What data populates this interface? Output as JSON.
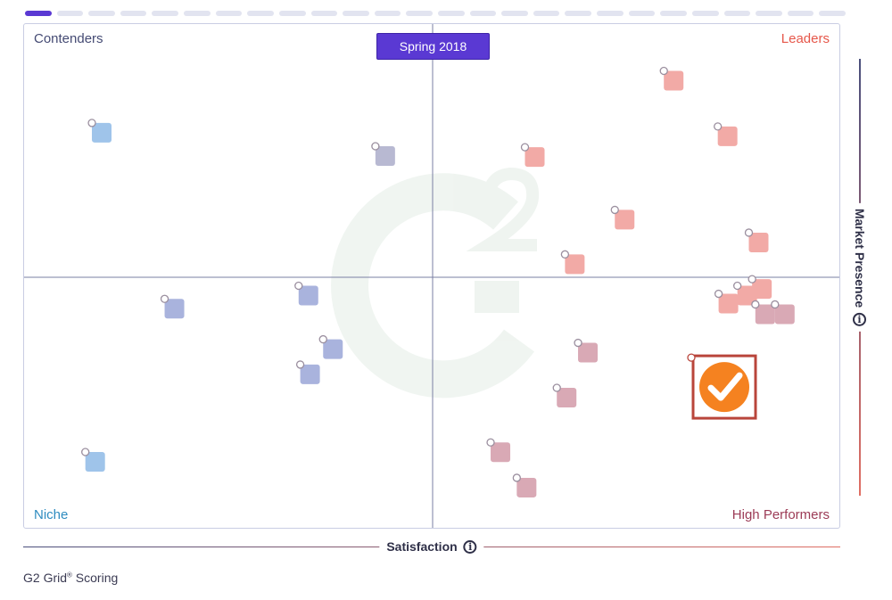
{
  "progress": {
    "total_steps": 26,
    "active_step": 1
  },
  "quadrants": {
    "top_left": "Contenders",
    "top_right": "Leaders",
    "bottom_left": "Niche",
    "bottom_right": "High Performers"
  },
  "period_label": "Spring 2018",
  "footer": {
    "text": "G2 Grid",
    "mark": "®",
    "suffix": " Scoring"
  },
  "colors": {
    "accent": "#5a39d3",
    "leaders": "#e6574a",
    "contenders": "#454b74",
    "niche": "#2f8cc0",
    "high_performers": "#9c3b56",
    "highlight_icon": "#f58220"
  },
  "icons": {
    "info": "info-icon",
    "highlight": "checkmark-icon",
    "watermark": "g2-logo"
  },
  "chart_data": {
    "type": "scatter",
    "title": "",
    "xlabel": "Satisfaction",
    "ylabel": "Market Presence",
    "xlim": [
      0,
      100
    ],
    "ylim": [
      0,
      100
    ],
    "grid": false,
    "points": [
      {
        "x": 9.5,
        "y": 78.5,
        "group": "Contenders"
      },
      {
        "x": 44.2,
        "y": 73.9,
        "group": "Contenders"
      },
      {
        "x": 62.5,
        "y": 73.7,
        "group": "Leaders"
      },
      {
        "x": 79.5,
        "y": 88.8,
        "group": "Leaders"
      },
      {
        "x": 86.1,
        "y": 77.8,
        "group": "Leaders"
      },
      {
        "x": 73.5,
        "y": 61.3,
        "group": "Leaders"
      },
      {
        "x": 89.9,
        "y": 56.8,
        "group": "Leaders"
      },
      {
        "x": 67.4,
        "y": 52.5,
        "group": "Leaders"
      },
      {
        "x": 90.3,
        "y": 47.6,
        "group": "Leaders"
      },
      {
        "x": 88.5,
        "y": 46.3,
        "group": "Leaders"
      },
      {
        "x": 86.2,
        "y": 44.7,
        "group": "Leaders"
      },
      {
        "x": 90.7,
        "y": 42.6,
        "group": "High Performers"
      },
      {
        "x": 93.1,
        "y": 42.6,
        "group": "High Performers"
      },
      {
        "x": 18.4,
        "y": 43.7,
        "group": "Niche"
      },
      {
        "x": 34.8,
        "y": 46.3,
        "group": "Niche"
      },
      {
        "x": 37.8,
        "y": 35.7,
        "group": "Niche"
      },
      {
        "x": 35.0,
        "y": 30.7,
        "group": "Niche"
      },
      {
        "x": 8.7,
        "y": 13.4,
        "group": "Niche"
      },
      {
        "x": 69.0,
        "y": 35.0,
        "group": "High Performers"
      },
      {
        "x": 66.4,
        "y": 26.1,
        "group": "High Performers"
      },
      {
        "x": 58.3,
        "y": 15.3,
        "group": "High Performers"
      },
      {
        "x": 61.5,
        "y": 8.3,
        "group": "High Performers"
      },
      {
        "x": 85.7,
        "y": 28.2,
        "group": "High Performers",
        "highlighted": true
      }
    ]
  }
}
